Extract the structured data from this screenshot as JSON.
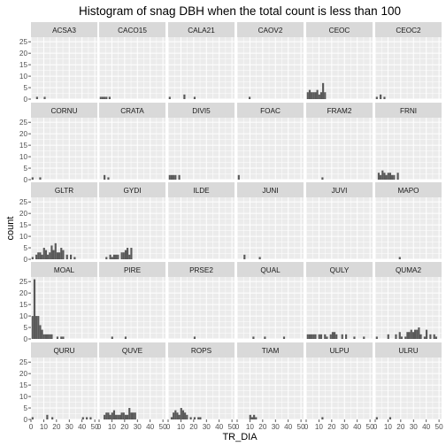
{
  "chart_data": {
    "type": "bar",
    "subtype": "faceted-histogram",
    "title": "Histogram of snag DBH when the total count is less than 100",
    "xlabel": "TR_DIA",
    "ylabel": "count",
    "xlim": [
      0,
      52
    ],
    "ylim": [
      0,
      27
    ],
    "x_ticks": [
      0,
      10,
      20,
      30,
      40,
      50
    ],
    "y_ticks": [
      0,
      5,
      10,
      15,
      20,
      25
    ],
    "bin_width": 1.5,
    "grid": true,
    "legend": "none",
    "panels": [
      {
        "name": "ACSA3",
        "bins": [
          [
            4,
            1
          ],
          [
            10,
            1
          ]
        ]
      },
      {
        "name": "CACO15",
        "bins": [
          [
            0.5,
            1
          ],
          [
            2,
            1
          ],
          [
            3.5,
            1
          ],
          [
            5,
            1
          ],
          [
            7.5,
            1
          ]
        ]
      },
      {
        "name": "CALA21",
        "bins": [
          [
            0.5,
            1
          ],
          [
            12,
            2
          ],
          [
            20,
            1
          ]
        ]
      },
      {
        "name": "CAOV2",
        "bins": [
          [
            9,
            1
          ]
        ]
      },
      {
        "name": "CEOC",
        "bins": [
          [
            0.5,
            3
          ],
          [
            2,
            4
          ],
          [
            3.5,
            3
          ],
          [
            5,
            3
          ],
          [
            6.5,
            3
          ],
          [
            8,
            4
          ],
          [
            9.5,
            2
          ],
          [
            11,
            3
          ],
          [
            12.5,
            7
          ],
          [
            14,
            3
          ]
        ]
      },
      {
        "name": "CEOC2",
        "bins": [
          [
            0.5,
            1
          ],
          [
            3.5,
            2
          ],
          [
            6.5,
            1
          ]
        ]
      },
      {
        "name": "CORNU",
        "bins": [
          [
            0.5,
            1
          ],
          [
            6.5,
            1
          ]
        ]
      },
      {
        "name": "CRATA",
        "bins": [
          [
            3.5,
            2
          ],
          [
            6.5,
            1
          ]
        ]
      },
      {
        "name": "DIVI5",
        "bins": [
          [
            0.5,
            2
          ],
          [
            2,
            2
          ],
          [
            3.5,
            2
          ],
          [
            5,
            2
          ],
          [
            8,
            2
          ]
        ]
      },
      {
        "name": "FOAC",
        "bins": [
          [
            0.5,
            2
          ]
        ]
      },
      {
        "name": "FRAM2",
        "bins": [
          [
            12,
            1
          ]
        ]
      },
      {
        "name": "FRNI",
        "bins": [
          [
            2,
            3
          ],
          [
            3.5,
            2
          ],
          [
            5,
            4
          ],
          [
            6.5,
            3
          ],
          [
            8,
            2
          ],
          [
            9.5,
            3
          ],
          [
            11,
            3
          ],
          [
            12.5,
            2
          ],
          [
            14,
            2
          ],
          [
            17,
            3
          ]
        ]
      },
      {
        "name": "GLTR",
        "bins": [
          [
            0.5,
            1
          ],
          [
            3.5,
            2
          ],
          [
            5,
            3
          ],
          [
            6.5,
            3
          ],
          [
            8,
            2
          ],
          [
            9.5,
            5
          ],
          [
            11,
            4
          ],
          [
            12.5,
            2
          ],
          [
            14,
            3
          ],
          [
            15.5,
            6
          ],
          [
            17,
            4
          ],
          [
            18.5,
            7
          ],
          [
            20,
            3
          ],
          [
            21.5,
            3
          ],
          [
            23,
            5
          ],
          [
            24.5,
            4
          ],
          [
            27.5,
            2
          ],
          [
            30.5,
            2
          ],
          [
            33.5,
            1
          ]
        ]
      },
      {
        "name": "GYDI",
        "bins": [
          [
            5,
            1
          ],
          [
            8,
            2
          ],
          [
            9.5,
            1
          ],
          [
            11,
            2
          ],
          [
            12.5,
            2
          ],
          [
            14,
            2
          ],
          [
            17,
            3
          ],
          [
            18.5,
            3
          ],
          [
            20,
            4
          ],
          [
            21.5,
            5
          ],
          [
            23,
            2
          ],
          [
            24.5,
            5
          ]
        ]
      },
      {
        "name": "ILDE",
        "bins": []
      },
      {
        "name": "JUNI",
        "bins": [
          [
            5,
            2
          ],
          [
            17,
            1
          ]
        ]
      },
      {
        "name": "JUVI",
        "bins": []
      },
      {
        "name": "MAPO",
        "bins": [
          [
            18.5,
            1
          ]
        ]
      },
      {
        "name": "MOAL",
        "bins": [
          [
            0.5,
            10
          ],
          [
            2,
            26
          ],
          [
            3.5,
            10
          ],
          [
            5,
            10
          ],
          [
            6.5,
            6
          ],
          [
            8,
            4
          ],
          [
            9.5,
            2
          ],
          [
            11,
            2
          ],
          [
            12.5,
            2
          ],
          [
            14,
            2
          ],
          [
            15.5,
            2
          ],
          [
            20,
            1
          ],
          [
            23,
            1
          ],
          [
            24.5,
            1
          ]
        ]
      },
      {
        "name": "PIRE",
        "bins": [
          [
            9.5,
            1
          ],
          [
            20,
            1
          ]
        ]
      },
      {
        "name": "PRSE2",
        "bins": [
          [
            20,
            1
          ]
        ]
      },
      {
        "name": "QUAL",
        "bins": [
          [
            12,
            1
          ],
          [
            21,
            1
          ],
          [
            36,
            1
          ]
        ]
      },
      {
        "name": "QULY",
        "bins": [
          [
            0.5,
            2
          ],
          [
            2,
            2
          ],
          [
            3.5,
            2
          ],
          [
            5,
            2
          ],
          [
            6.5,
            2
          ],
          [
            9.5,
            2
          ],
          [
            11,
            2
          ],
          [
            14,
            2
          ],
          [
            15.5,
            1
          ],
          [
            18.5,
            2
          ],
          [
            20,
            3
          ],
          [
            21.5,
            3
          ],
          [
            23,
            2
          ],
          [
            27.5,
            2
          ],
          [
            30.5,
            2
          ],
          [
            37,
            1
          ],
          [
            44.5,
            1
          ]
        ]
      },
      {
        "name": "QUMA2",
        "bins": [
          [
            0.5,
            1
          ],
          [
            9.5,
            2
          ],
          [
            15.5,
            2
          ],
          [
            18.5,
            3
          ],
          [
            20,
            1
          ],
          [
            23,
            1
          ],
          [
            24.5,
            3
          ],
          [
            26,
            3
          ],
          [
            27.5,
            4
          ],
          [
            29,
            3
          ],
          [
            30.5,
            4
          ],
          [
            32,
            4
          ],
          [
            33.5,
            5
          ],
          [
            35,
            2
          ],
          [
            38,
            1
          ],
          [
            39.5,
            4
          ],
          [
            42.5,
            2
          ],
          [
            45.5,
            2
          ],
          [
            47,
            1
          ]
        ]
      },
      {
        "name": "QURU",
        "bins": [
          [
            0.5,
            1
          ],
          [
            12,
            2
          ],
          [
            16,
            1
          ],
          [
            40,
            1
          ],
          [
            43,
            1
          ],
          [
            46,
            1
          ]
        ]
      },
      {
        "name": "QUVE",
        "bins": [
          [
            3.5,
            2
          ],
          [
            5,
            3
          ],
          [
            6.5,
            3
          ],
          [
            8,
            2
          ],
          [
            9.5,
            3
          ],
          [
            11,
            4
          ],
          [
            12.5,
            2
          ],
          [
            14,
            2
          ],
          [
            15.5,
            2
          ],
          [
            17,
            3
          ],
          [
            18.5,
            3
          ],
          [
            20,
            2
          ],
          [
            21.5,
            2
          ],
          [
            23,
            5
          ],
          [
            24.5,
            3
          ],
          [
            26,
            3
          ],
          [
            27.5,
            3
          ]
        ]
      },
      {
        "name": "ROPS",
        "bins": [
          [
            2,
            1
          ],
          [
            3.5,
            3
          ],
          [
            5,
            4
          ],
          [
            6.5,
            3
          ],
          [
            8,
            2
          ],
          [
            9.5,
            5
          ],
          [
            11,
            4
          ],
          [
            12.5,
            3
          ],
          [
            14,
            2
          ],
          [
            17,
            1
          ],
          [
            20,
            1
          ],
          [
            23,
            1
          ],
          [
            24.5,
            1
          ]
        ]
      },
      {
        "name": "TIAM",
        "bins": [
          [
            9.5,
            2
          ],
          [
            11,
            1
          ],
          [
            12.5,
            2
          ],
          [
            14,
            1
          ]
        ]
      },
      {
        "name": "ULPU",
        "bins": [
          [
            12,
            1
          ]
        ]
      },
      {
        "name": "ULRU",
        "bins": [
          [
            0.5,
            1
          ],
          [
            11,
            1
          ]
        ]
      }
    ]
  }
}
